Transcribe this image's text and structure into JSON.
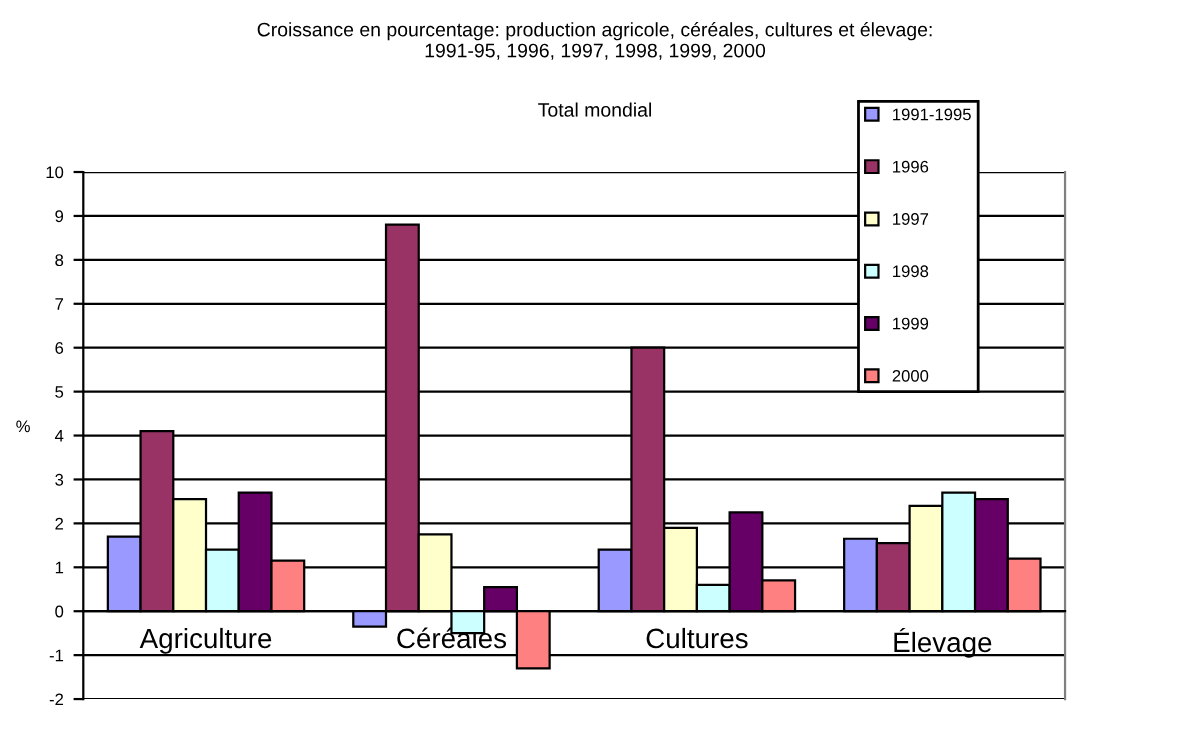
{
  "chart_data": {
    "type": "bar",
    "title": "Croissance en pourcentage: production agricole, céréales, cultures et élevage:\n1991-95, 1996, 1997, 1998, 1999, 2000",
    "subtitle": "Total mondial",
    "ylabel": "%",
    "categories": [
      "Agriculture",
      "Céréales",
      "Cultures",
      "Élevage"
    ],
    "series": [
      {
        "name": "1991-1995",
        "color": "#9999ff",
        "values": [
          1.7,
          -0.35,
          1.4,
          1.65
        ]
      },
      {
        "name": "1996",
        "color": "#993366",
        "values": [
          4.1,
          8.8,
          6.0,
          1.55
        ]
      },
      {
        "name": "1997",
        "color": "#ffffcc",
        "values": [
          2.55,
          1.75,
          1.9,
          2.4
        ]
      },
      {
        "name": "1998",
        "color": "#ccffff",
        "values": [
          1.4,
          -0.5,
          0.6,
          2.7
        ]
      },
      {
        "name": "1999",
        "color": "#660066",
        "values": [
          2.7,
          0.55,
          2.25,
          2.55
        ]
      },
      {
        "name": "2000",
        "color": "#ff8080",
        "values": [
          1.15,
          -1.3,
          0.7,
          1.2
        ]
      }
    ],
    "ylim": [
      -2,
      10
    ],
    "yticks": [
      -2,
      -1,
      0,
      1,
      2,
      3,
      4,
      5,
      6,
      7,
      8,
      9,
      10
    ],
    "grid": "y",
    "legend": "top right"
  }
}
